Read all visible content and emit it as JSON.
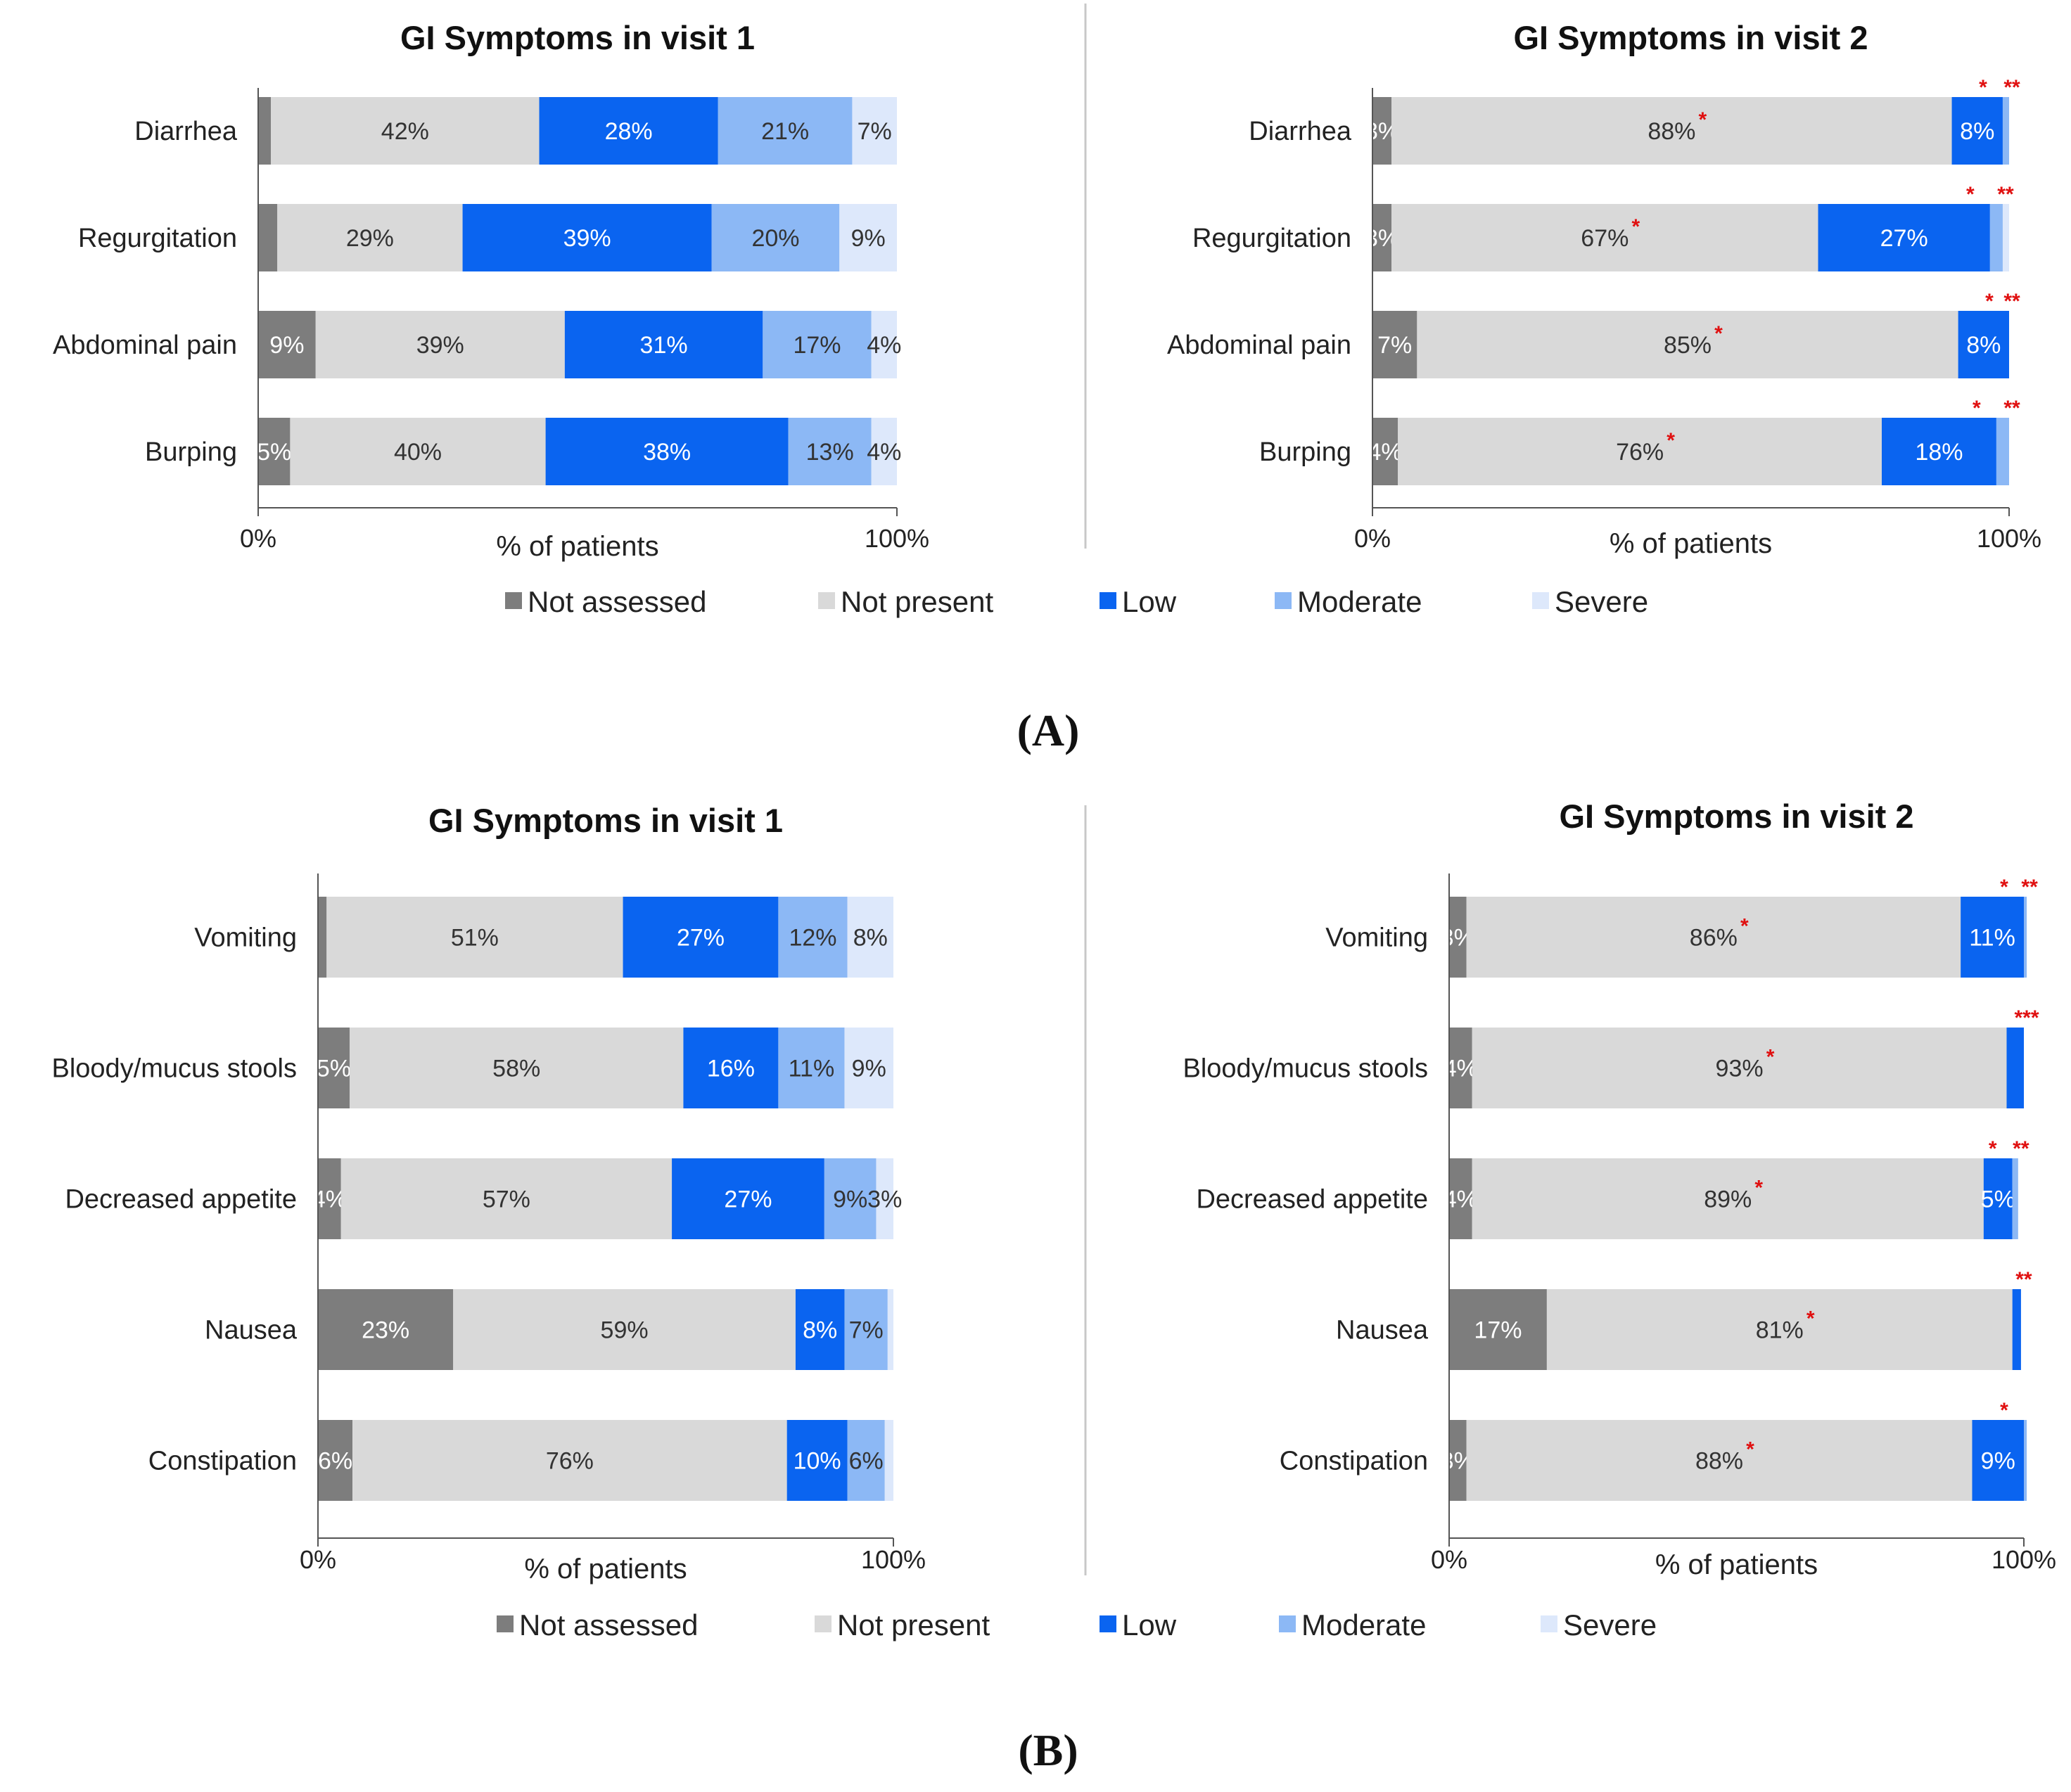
{
  "colors": {
    "Not assessed": "#7d7d7d",
    "Not present": "#d9d9d9",
    "Low": "#0a64f0",
    "Moderate": "#8cb8f5",
    "Severe": "#dde8fb",
    "star": "#e01010"
  },
  "legend": [
    "Not assessed",
    "Not present",
    "Low",
    "Moderate",
    "Severe"
  ],
  "panel_labels": [
    "(A)",
    "(B)"
  ],
  "chart_data": [
    {
      "type": "bar",
      "stacked": true,
      "orientation": "horizontal",
      "panel": "(A)",
      "title": "GI Symptoms in visit 1",
      "xlabel": "% of patients",
      "xlim": [
        0,
        100
      ],
      "xticks": [
        "0%",
        "100%"
      ],
      "categories": [
        "Diarrhea",
        "Regurgitation",
        "Abdominal pain",
        "Burping"
      ],
      "series": [
        {
          "name": "Not assessed",
          "values": [
            2,
            3,
            9,
            5
          ],
          "labels": [
            "",
            "",
            "9%",
            "5%"
          ]
        },
        {
          "name": "Not present",
          "values": [
            42,
            29,
            39,
            40
          ],
          "labels": [
            "42%",
            "29%",
            "39%",
            "40%"
          ]
        },
        {
          "name": "Low",
          "values": [
            28,
            39,
            31,
            38
          ],
          "labels": [
            "28%",
            "39%",
            "31%",
            "38%"
          ]
        },
        {
          "name": "Moderate",
          "values": [
            21,
            20,
            17,
            13
          ],
          "labels": [
            "21%",
            "20%",
            "17%",
            "13%"
          ]
        },
        {
          "name": "Severe",
          "values": [
            7,
            9,
            4,
            4
          ],
          "labels": [
            "7%",
            "9%",
            "4%",
            "4%"
          ]
        }
      ]
    },
    {
      "type": "bar",
      "stacked": true,
      "orientation": "horizontal",
      "panel": "(A)",
      "title": "GI Symptoms in visit 2",
      "xlabel": "% of patients",
      "xlim": [
        0,
        100
      ],
      "xticks": [
        "0%",
        "100%"
      ],
      "categories": [
        "Diarrhea",
        "Regurgitation",
        "Abdominal pain",
        "Burping"
      ],
      "series": [
        {
          "name": "Not assessed",
          "values": [
            3,
            3,
            7,
            4
          ],
          "labels": [
            "3%",
            "3%",
            "7%",
            "4%"
          ],
          "stars": [
            "",
            "",
            "",
            ""
          ]
        },
        {
          "name": "Not present",
          "values": [
            88,
            67,
            85,
            76
          ],
          "labels": [
            "88%",
            "67%",
            "85%",
            "76%"
          ],
          "stars": [
            "*",
            "*",
            "*",
            "*"
          ]
        },
        {
          "name": "Low",
          "values": [
            8,
            27,
            8,
            18
          ],
          "labels": [
            "8%",
            "27%",
            "8%",
            "18%"
          ],
          "stars": [
            "*",
            "*",
            "*",
            "*"
          ]
        },
        {
          "name": "Moderate",
          "values": [
            1,
            2,
            0,
            2
          ],
          "labels": [
            "",
            "",
            "",
            ""
          ],
          "stars": [
            "**",
            "**",
            "**",
            "**"
          ]
        },
        {
          "name": "Severe",
          "values": [
            0,
            1,
            0,
            0
          ],
          "labels": [
            "",
            "",
            "",
            ""
          ],
          "stars": [
            "",
            "",
            "",
            ""
          ]
        }
      ]
    },
    {
      "type": "bar",
      "stacked": true,
      "orientation": "horizontal",
      "panel": "(B)",
      "title": "GI Symptoms in visit 1",
      "xlabel": "% of patients",
      "xlim": [
        0,
        100
      ],
      "xticks": [
        "0%",
        "100%"
      ],
      "categories": [
        "Vomiting",
        "Bloody/mucus  stools",
        "Decreased appetite",
        "Nausea",
        "Constipation"
      ],
      "series": [
        {
          "name": "Not assessed",
          "values": [
            1.5,
            5.5,
            4,
            23.5,
            6
          ],
          "labels": [
            "",
            "5%",
            "4%",
            "23%",
            "6%"
          ]
        },
        {
          "name": "Not present",
          "values": [
            51.5,
            58,
            57.5,
            59.5,
            75.5
          ],
          "labels": [
            "51%",
            "58%",
            "57%",
            "59%",
            "76%"
          ]
        },
        {
          "name": "Low",
          "values": [
            27,
            16.5,
            26.5,
            8.5,
            10.5
          ],
          "labels": [
            "27%",
            "16%",
            "27%",
            "8%",
            "10%"
          ]
        },
        {
          "name": "Moderate",
          "values": [
            12,
            11.5,
            9,
            7.5,
            6.5
          ],
          "labels": [
            "12%",
            "11%",
            "9%",
            "7%",
            "6%"
          ]
        },
        {
          "name": "Severe",
          "values": [
            8,
            8.5,
            3,
            1,
            1.5
          ],
          "labels": [
            "8%",
            "9%",
            "3%",
            "",
            ""
          ]
        }
      ]
    },
    {
      "type": "bar",
      "stacked": true,
      "orientation": "horizontal",
      "panel": "(B)",
      "title": "GI Symptoms in visit 2",
      "xlabel": "% of patients",
      "xlim": [
        0,
        100
      ],
      "xticks": [
        "0%",
        "100%"
      ],
      "categories": [
        "Vomiting",
        "Bloody/mucus  stools",
        "Decreased appetite",
        "Nausea",
        "Constipation"
      ],
      "series": [
        {
          "name": "Not assessed",
          "values": [
            3,
            4,
            4,
            17,
            3
          ],
          "labels": [
            "3%",
            "4%",
            "4%",
            "17%",
            "3%"
          ],
          "stars": [
            "",
            "",
            "",
            "",
            ""
          ]
        },
        {
          "name": "Not present",
          "values": [
            86,
            93,
            89,
            81,
            88
          ],
          "labels": [
            "86%",
            "93%",
            "89%",
            "81%",
            "88%"
          ],
          "stars": [
            "*",
            "*",
            "*",
            "*",
            "*"
          ]
        },
        {
          "name": "Low",
          "values": [
            11,
            3,
            5,
            1.5,
            9
          ],
          "labels": [
            "11%",
            "",
            "5%",
            "",
            "9%"
          ],
          "stars": [
            "*",
            "",
            "*",
            "",
            "*"
          ]
        },
        {
          "name": "Moderate",
          "values": [
            0.5,
            0,
            1,
            0,
            0.5
          ],
          "labels": [
            "",
            "",
            "",
            "",
            ""
          ],
          "stars": [
            "**",
            "***",
            "**",
            "**",
            ""
          ]
        },
        {
          "name": "Severe",
          "values": [
            0,
            0,
            0,
            0,
            0
          ],
          "labels": [
            "",
            "",
            "",
            "",
            ""
          ],
          "stars": [
            "",
            "",
            "",
            "",
            ""
          ]
        }
      ]
    }
  ]
}
